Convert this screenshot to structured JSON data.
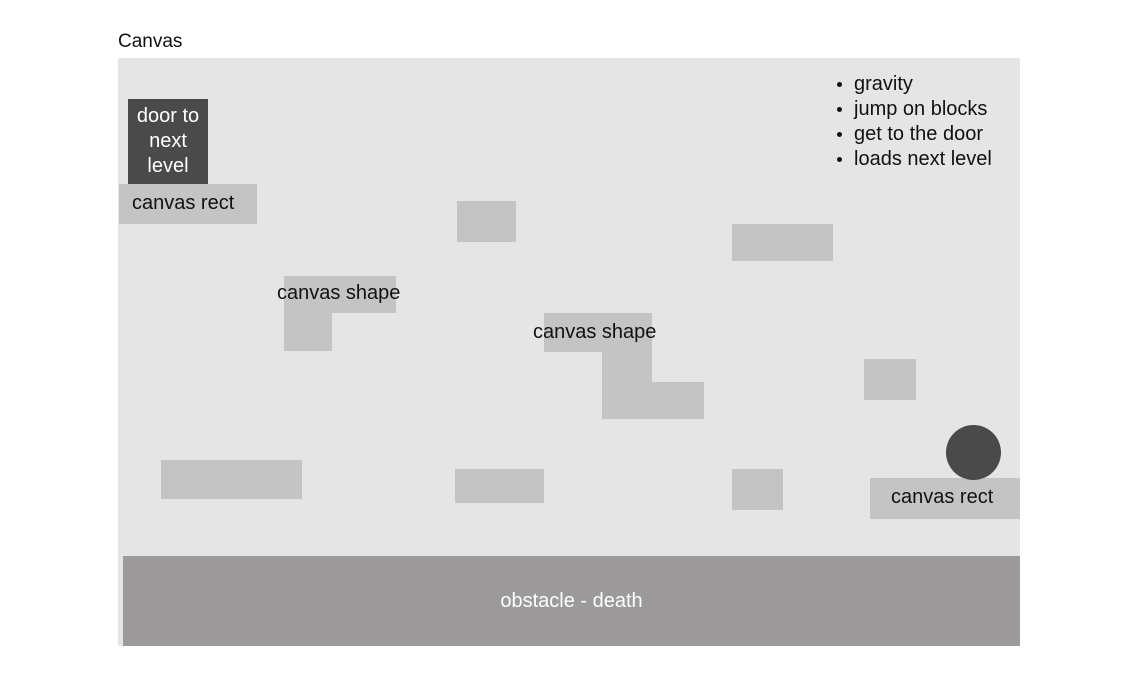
{
  "title": "Canvas",
  "door": {
    "label": "door to\nnext\nlevel"
  },
  "rect_label_top_left": "canvas rect",
  "rect_label_bottom_right": "canvas rect",
  "shape_label_left": "canvas shape",
  "shape_label_center": "canvas shape",
  "notes": [
    "gravity",
    "jump on blocks",
    "get to the door",
    "loads next level"
  ],
  "obstacle_label": "obstacle - death"
}
